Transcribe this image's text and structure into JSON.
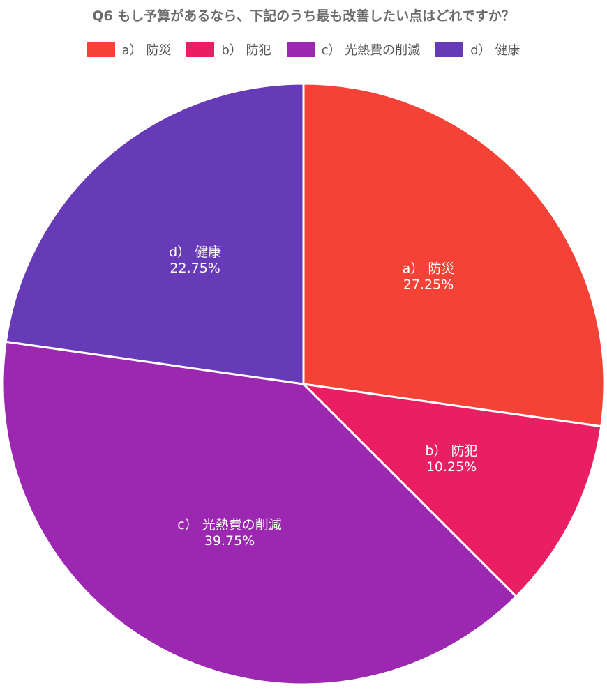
{
  "chart_data": {
    "type": "pie",
    "title": "Q6 もし予算があるなら、下記のうち最も改善したい点はどれですか？",
    "legend_position": "top",
    "start_angle_deg": 0,
    "direction": "clockwise",
    "slices": [
      {
        "label": "a） 防災",
        "value": 27.25,
        "value_label": "27.25%",
        "color": "#f44336"
      },
      {
        "label": "b） 防犯",
        "value": 10.25,
        "value_label": "10.25%",
        "color": "#e91e63"
      },
      {
        "label": "c） 光熱費の削減",
        "value": 39.75,
        "value_label": "39.75%",
        "color": "#9c27b0"
      },
      {
        "label": "d） 健康",
        "value": 22.75,
        "value_label": "22.75%",
        "color": "#673ab7"
      }
    ]
  }
}
